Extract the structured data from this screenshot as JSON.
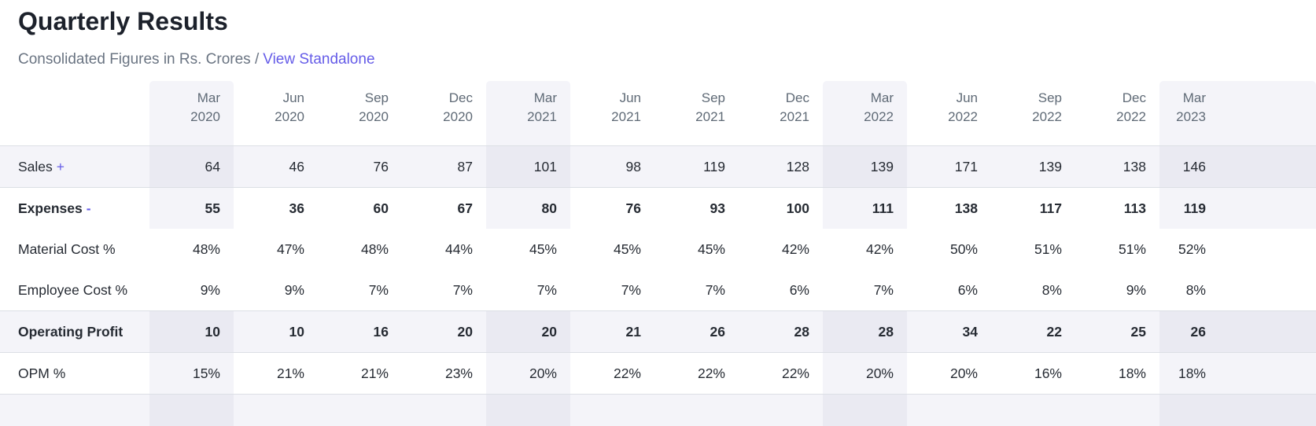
{
  "header": {
    "title": "Quarterly Results",
    "subtitle": "Consolidated Figures in Rs. Crores /",
    "link_label": "View Standalone"
  },
  "table": {
    "columns": [
      {
        "month": "Mar",
        "year": "2020",
        "highlight": true
      },
      {
        "month": "Jun",
        "year": "2020",
        "highlight": false
      },
      {
        "month": "Sep",
        "year": "2020",
        "highlight": false
      },
      {
        "month": "Dec",
        "year": "2020",
        "highlight": false
      },
      {
        "month": "Mar",
        "year": "2021",
        "highlight": true
      },
      {
        "month": "Jun",
        "year": "2021",
        "highlight": false
      },
      {
        "month": "Sep",
        "year": "2021",
        "highlight": false
      },
      {
        "month": "Dec",
        "year": "2021",
        "highlight": false
      },
      {
        "month": "Mar",
        "year": "2022",
        "highlight": true
      },
      {
        "month": "Jun",
        "year": "2022",
        "highlight": false
      },
      {
        "month": "Sep",
        "year": "2022",
        "highlight": false
      },
      {
        "month": "Dec",
        "year": "2022",
        "highlight": false
      },
      {
        "month": "Mar",
        "year": "2023",
        "highlight": true
      }
    ],
    "rows": [
      {
        "key": "sales",
        "label": "Sales",
        "toggle": "+",
        "bold": false,
        "striped": true,
        "column_highlights": true,
        "border_bottom": true,
        "values": [
          "64",
          "46",
          "76",
          "87",
          "101",
          "98",
          "119",
          "128",
          "139",
          "171",
          "139",
          "138",
          "146"
        ]
      },
      {
        "key": "expenses",
        "label": "Expenses",
        "toggle": "-",
        "bold": true,
        "striped": false,
        "column_highlights": true,
        "border_bottom": false,
        "values": [
          "55",
          "36",
          "60",
          "67",
          "80",
          "76",
          "93",
          "100",
          "111",
          "138",
          "117",
          "113",
          "119"
        ]
      },
      {
        "key": "material-cost-pct",
        "label": "Material Cost %",
        "toggle": "",
        "bold": false,
        "striped": false,
        "column_highlights": false,
        "border_bottom": false,
        "values": [
          "48%",
          "47%",
          "48%",
          "44%",
          "45%",
          "45%",
          "45%",
          "42%",
          "42%",
          "50%",
          "51%",
          "51%",
          "52%"
        ]
      },
      {
        "key": "employee-cost-pct",
        "label": "Employee Cost %",
        "toggle": "",
        "bold": false,
        "striped": false,
        "column_highlights": false,
        "border_bottom": true,
        "values": [
          "9%",
          "9%",
          "7%",
          "7%",
          "7%",
          "7%",
          "7%",
          "6%",
          "7%",
          "6%",
          "8%",
          "9%",
          "8%"
        ]
      },
      {
        "key": "operating-profit",
        "label": "Operating Profit",
        "toggle": "",
        "bold": true,
        "striped": true,
        "column_highlights": true,
        "border_bottom": true,
        "values": [
          "10",
          "10",
          "16",
          "20",
          "20",
          "21",
          "26",
          "28",
          "28",
          "34",
          "22",
          "25",
          "26"
        ]
      },
      {
        "key": "opm-pct",
        "label": "OPM %",
        "toggle": "",
        "bold": false,
        "striped": false,
        "column_highlights": true,
        "border_bottom": true,
        "values": [
          "15%",
          "21%",
          "21%",
          "23%",
          "20%",
          "22%",
          "22%",
          "22%",
          "20%",
          "20%",
          "16%",
          "18%",
          "18%"
        ]
      }
    ]
  },
  "colors": {
    "accent_purple": "#655ce8",
    "title_text": "#1c212b",
    "body_text": "#262b33",
    "muted_text": "#5f6a76",
    "subtitle_text": "#6a7482",
    "row_stripe": "#f4f4f9",
    "column_highlight": "#f4f4f9",
    "stripe_highlight_overlap": "#eaeaf2",
    "border": "#dcdfe5"
  }
}
